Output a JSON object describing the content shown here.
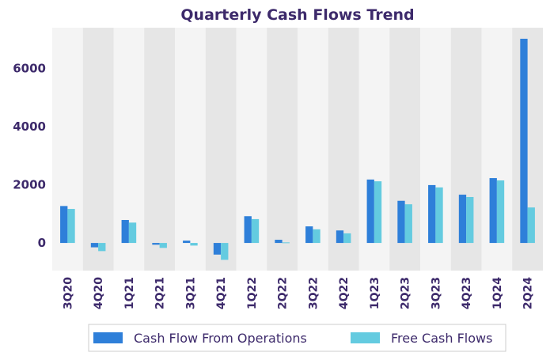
{
  "chart_data": {
    "type": "bar",
    "title": "Quarterly Cash Flows Trend",
    "xlabel": "",
    "ylabel": "",
    "categories": [
      "3Q20",
      "4Q20",
      "1Q21",
      "2Q21",
      "3Q21",
      "4Q21",
      "1Q22",
      "2Q22",
      "3Q22",
      "4Q22",
      "1Q23",
      "2Q23",
      "3Q23",
      "4Q23",
      "1Q24",
      "2Q24"
    ],
    "series": [
      {
        "name": "Cash Flow From Operations",
        "color": "#2e7fd9",
        "values": [
          1270,
          -150,
          790,
          -60,
          80,
          -400,
          920,
          110,
          570,
          430,
          2180,
          1450,
          1990,
          1660,
          2230,
          7020
        ]
      },
      {
        "name": "Free Cash Flows",
        "color": "#64cbe0",
        "values": [
          1170,
          -280,
          700,
          -170,
          -90,
          -580,
          820,
          20,
          470,
          330,
          2120,
          1330,
          1910,
          1580,
          2150,
          1220
        ]
      }
    ],
    "yticks": [
      0,
      2000,
      4000,
      6000
    ],
    "ylim": [
      -950,
      7400
    ],
    "legend_position": "bottom",
    "grid": false,
    "colors": {
      "title": "#3d2a6b",
      "text": "#3d2a6b",
      "band_light": "#f4f4f4",
      "band_dark": "#e6e6e6"
    }
  }
}
